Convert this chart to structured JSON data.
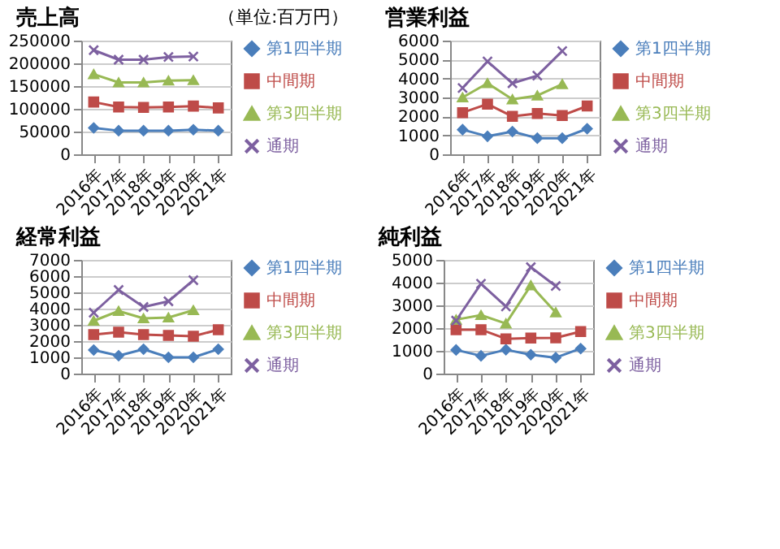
{
  "chart_data": [
    {
      "type": "line",
      "title": "売上高",
      "annotations": [
        "（単位:百万円）"
      ],
      "categories": [
        "2016年",
        "2017年",
        "2018年",
        "2019年",
        "2020年",
        "2021年"
      ],
      "ylim": [
        0,
        250000
      ],
      "yticks": [
        0,
        50000,
        100000,
        150000,
        200000,
        250000
      ],
      "grid": "y",
      "legend": "right",
      "series": [
        {
          "name": "第1四半期",
          "color": "#4a7ebb",
          "marker": "diamond",
          "values": [
            58000,
            52000,
            52000,
            52000,
            54000,
            52000
          ]
        },
        {
          "name": "中間期",
          "color": "#be4b48",
          "marker": "square",
          "values": [
            115000,
            104000,
            103000,
            104000,
            106000,
            102000
          ]
        },
        {
          "name": "第3四半期",
          "color": "#98b954",
          "marker": "triangle",
          "values": [
            176000,
            158000,
            158000,
            162000,
            163000,
            null
          ]
        },
        {
          "name": "通期",
          "color": "#7d60a0",
          "marker": "cross",
          "values": [
            229000,
            208000,
            208000,
            214000,
            215000,
            null
          ]
        }
      ]
    },
    {
      "type": "line",
      "title": "営業利益",
      "categories": [
        "2016年",
        "2017年",
        "2018年",
        "2019年",
        "2020年",
        "2021年"
      ],
      "ylim": [
        0,
        6000
      ],
      "yticks": [
        0,
        1000,
        2000,
        3000,
        4000,
        5000,
        6000
      ],
      "grid": "y",
      "legend": "right",
      "series": [
        {
          "name": "第1四半期",
          "color": "#4a7ebb",
          "marker": "diamond",
          "values": [
            1300,
            950,
            1200,
            850,
            850,
            1350
          ]
        },
        {
          "name": "中間期",
          "color": "#be4b48",
          "marker": "square",
          "values": [
            2200,
            2650,
            2000,
            2150,
            2050,
            2550
          ]
        },
        {
          "name": "第3四半期",
          "color": "#98b954",
          "marker": "triangle",
          "values": [
            3000,
            3750,
            2900,
            3100,
            3700,
            null
          ]
        },
        {
          "name": "通期",
          "color": "#7d60a0",
          "marker": "cross",
          "values": [
            3500,
            4900,
            3750,
            4150,
            5450,
            null
          ]
        }
      ]
    },
    {
      "type": "line",
      "title": "経常利益",
      "categories": [
        "2016年",
        "2017年",
        "2018年",
        "2019年",
        "2020年",
        "2021年"
      ],
      "ylim": [
        0,
        7000
      ],
      "yticks": [
        0,
        1000,
        2000,
        3000,
        4000,
        5000,
        6000,
        7000
      ],
      "grid": "y",
      "legend": "right",
      "series": [
        {
          "name": "第1四半期",
          "color": "#4a7ebb",
          "marker": "diamond",
          "values": [
            1450,
            1100,
            1500,
            1000,
            1000,
            1500
          ]
        },
        {
          "name": "中間期",
          "color": "#be4b48",
          "marker": "square",
          "values": [
            2400,
            2550,
            2400,
            2350,
            2300,
            2700
          ]
        },
        {
          "name": "第3四半期",
          "color": "#98b954",
          "marker": "triangle",
          "values": [
            3250,
            3850,
            3400,
            3450,
            3900,
            null
          ]
        },
        {
          "name": "通期",
          "color": "#7d60a0",
          "marker": "cross",
          "values": [
            3750,
            5150,
            4100,
            4450,
            5750,
            null
          ]
        }
      ]
    },
    {
      "type": "line",
      "title": "純利益",
      "categories": [
        "2016年",
        "2017年",
        "2018年",
        "2019年",
        "2020年",
        "2021年"
      ],
      "ylim": [
        0,
        5000
      ],
      "yticks": [
        0,
        1000,
        2000,
        3000,
        4000,
        5000
      ],
      "grid": "y",
      "legend": "right",
      "series": [
        {
          "name": "第1四半期",
          "color": "#4a7ebb",
          "marker": "diamond",
          "values": [
            1040,
            780,
            1050,
            830,
            700,
            1100
          ]
        },
        {
          "name": "中間期",
          "color": "#be4b48",
          "marker": "square",
          "values": [
            1930,
            1930,
            1530,
            1560,
            1570,
            1850
          ]
        },
        {
          "name": "第3四半期",
          "color": "#98b954",
          "marker": "triangle",
          "values": [
            2370,
            2570,
            2200,
            3880,
            2690,
            null
          ]
        },
        {
          "name": "通期",
          "color": "#7d60a0",
          "marker": "cross",
          "values": [
            2330,
            3950,
            2950,
            4680,
            3850,
            null
          ]
        }
      ]
    }
  ]
}
